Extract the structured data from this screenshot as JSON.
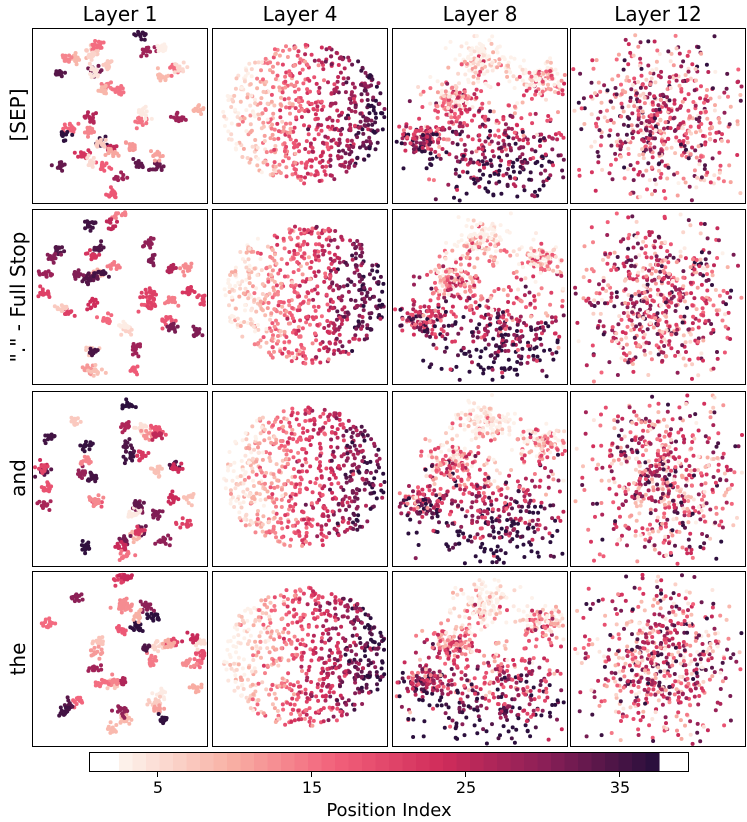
{
  "chart_data": {
    "type": "scatter",
    "columns": [
      "Layer 1",
      "Layer 4",
      "Layer 8",
      "Layer 12"
    ],
    "rows": [
      "[SEP]",
      "\".\" - Full Stop",
      "and",
      "the"
    ],
    "colorbar": {
      "label": "Position Index",
      "range": [
        1,
        40
      ],
      "ticks": [
        5,
        15,
        25,
        35
      ],
      "tick_labels": [
        "5",
        "15",
        "25",
        "35"
      ],
      "colormap": [
        "#fdf1ea",
        "#f8b0a4",
        "#f2607a",
        "#d02c5a",
        "#891f57",
        "#2b0f3d"
      ]
    },
    "axes": {
      "ticks_visible": false,
      "grid": false
    }
  }
}
